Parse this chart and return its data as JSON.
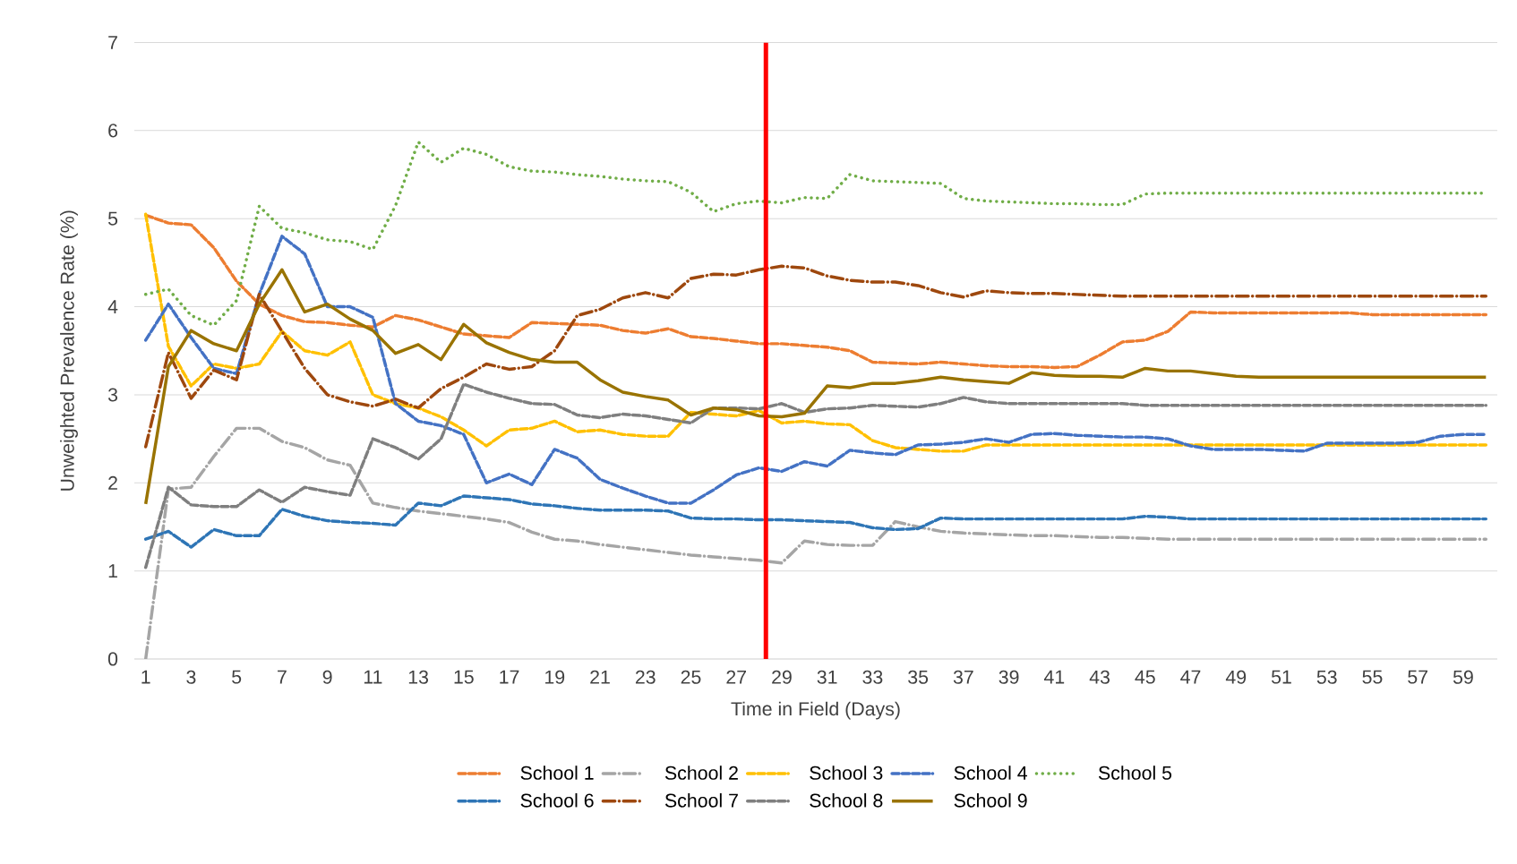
{
  "chart_data": {
    "type": "line",
    "xlabel": "Time in Field (Days)",
    "ylabel": "Unweighted Prevalence Rate (%)",
    "x": [
      1,
      2,
      3,
      4,
      5,
      6,
      7,
      8,
      9,
      10,
      11,
      12,
      13,
      14,
      15,
      16,
      17,
      18,
      19,
      20,
      21,
      22,
      23,
      24,
      25,
      26,
      27,
      28,
      29,
      30,
      31,
      32,
      33,
      34,
      35,
      36,
      37,
      38,
      39,
      40,
      41,
      42,
      43,
      44,
      45,
      46,
      47,
      48,
      49,
      50,
      51,
      52,
      53,
      54,
      55,
      56,
      57,
      58,
      59,
      60
    ],
    "xlim": [
      0.5,
      60.5
    ],
    "xticks": [
      1,
      3,
      5,
      7,
      9,
      11,
      13,
      15,
      17,
      19,
      21,
      23,
      25,
      27,
      29,
      31,
      33,
      35,
      37,
      39,
      41,
      43,
      45,
      47,
      49,
      51,
      53,
      55,
      57,
      59
    ],
    "ylim": [
      0,
      7
    ],
    "yticks": [
      0,
      1,
      2,
      3,
      4,
      5,
      6,
      7
    ],
    "grid": "y",
    "legend": "bottom",
    "marker": "none",
    "ref_lines": [
      {
        "axis": "x",
        "value": 28.3,
        "color": "#ff0000",
        "line_style": "solid"
      }
    ],
    "series": [
      {
        "name": "School 1",
        "color": "#ed7d31",
        "line_style": "dashed",
        "values": [
          5.04,
          4.95,
          4.93,
          4.67,
          4.29,
          4.03,
          3.9,
          3.83,
          3.82,
          3.79,
          3.77,
          3.9,
          3.85,
          3.77,
          3.69,
          3.67,
          3.65,
          3.82,
          3.81,
          3.8,
          3.79,
          3.73,
          3.7,
          3.75,
          3.66,
          3.64,
          3.61,
          3.58,
          3.58,
          3.56,
          3.54,
          3.5,
          3.37,
          3.36,
          3.35,
          3.37,
          3.35,
          3.33,
          3.32,
          3.32,
          3.31,
          3.32,
          3.45,
          3.6,
          3.62,
          3.72,
          3.94,
          3.93,
          3.93,
          3.93,
          3.93,
          3.93,
          3.93,
          3.93,
          3.91,
          3.91,
          3.91,
          3.91,
          3.91,
          3.91
        ]
      },
      {
        "name": "School 2",
        "color": "#a5a5a5",
        "line_style": "dashdot",
        "values": [
          0,
          1.93,
          1.95,
          2.3,
          2.62,
          2.62,
          2.47,
          2.4,
          2.26,
          2.2,
          1.77,
          1.72,
          1.68,
          1.65,
          1.62,
          1.59,
          1.55,
          1.44,
          1.36,
          1.34,
          1.3,
          1.27,
          1.24,
          1.21,
          1.18,
          1.16,
          1.14,
          1.12,
          1.09,
          1.34,
          1.3,
          1.29,
          1.29,
          1.56,
          1.5,
          1.45,
          1.43,
          1.42,
          1.41,
          1.4,
          1.4,
          1.39,
          1.38,
          1.38,
          1.37,
          1.36,
          1.36,
          1.36,
          1.36,
          1.36,
          1.36,
          1.36,
          1.36,
          1.36,
          1.36,
          1.36,
          1.36,
          1.36,
          1.36,
          1.36
        ]
      },
      {
        "name": "School 3",
        "color": "#ffc000",
        "line_style": "dashed",
        "values": [
          5.05,
          3.55,
          3.1,
          3.35,
          3.3,
          3.35,
          3.72,
          3.5,
          3.45,
          3.6,
          3.0,
          2.9,
          2.85,
          2.75,
          2.6,
          2.42,
          2.6,
          2.62,
          2.7,
          2.58,
          2.6,
          2.55,
          2.53,
          2.53,
          2.8,
          2.78,
          2.76,
          2.82,
          2.68,
          2.7,
          2.67,
          2.66,
          2.48,
          2.4,
          2.38,
          2.36,
          2.36,
          2.43,
          2.43,
          2.43,
          2.43,
          2.43,
          2.43,
          2.43,
          2.43,
          2.43,
          2.43,
          2.43,
          2.43,
          2.43,
          2.43,
          2.43,
          2.43,
          2.43,
          2.43,
          2.43,
          2.43,
          2.43,
          2.43,
          2.43
        ]
      },
      {
        "name": "School 4",
        "color": "#4472c4",
        "line_style": "dashed",
        "values": [
          3.62,
          4.03,
          3.65,
          3.3,
          3.24,
          4.14,
          4.8,
          4.6,
          4.0,
          4.0,
          3.88,
          2.9,
          2.7,
          2.65,
          2.55,
          2.0,
          2.1,
          1.98,
          2.38,
          2.28,
          2.04,
          1.94,
          1.85,
          1.77,
          1.77,
          1.92,
          2.09,
          2.17,
          2.13,
          2.24,
          2.19,
          2.37,
          2.34,
          2.32,
          2.43,
          2.44,
          2.46,
          2.5,
          2.46,
          2.55,
          2.56,
          2.54,
          2.53,
          2.52,
          2.52,
          2.5,
          2.42,
          2.38,
          2.38,
          2.38,
          2.37,
          2.36,
          2.45,
          2.45,
          2.45,
          2.45,
          2.46,
          2.53,
          2.55,
          2.55
        ]
      },
      {
        "name": "School 5",
        "color": "#70ad47",
        "line_style": "dotted",
        "values": [
          4.14,
          4.2,
          3.9,
          3.79,
          4.07,
          5.14,
          4.89,
          4.84,
          4.76,
          4.74,
          4.65,
          5.15,
          5.87,
          5.64,
          5.8,
          5.73,
          5.59,
          5.54,
          5.53,
          5.5,
          5.48,
          5.45,
          5.43,
          5.42,
          5.3,
          5.08,
          5.17,
          5.2,
          5.18,
          5.24,
          5.23,
          5.5,
          5.43,
          5.42,
          5.41,
          5.4,
          5.23,
          5.2,
          5.19,
          5.18,
          5.17,
          5.17,
          5.16,
          5.16,
          5.28,
          5.29,
          5.29,
          5.29,
          5.29,
          5.29,
          5.29,
          5.29,
          5.29,
          5.29,
          5.29,
          5.29,
          5.29,
          5.29,
          5.29,
          5.29
        ]
      },
      {
        "name": "School 6",
        "color": "#2e75b6",
        "line_style": "dashed",
        "values": [
          1.36,
          1.45,
          1.27,
          1.47,
          1.4,
          1.4,
          1.7,
          1.62,
          1.57,
          1.55,
          1.54,
          1.52,
          1.77,
          1.74,
          1.85,
          1.83,
          1.81,
          1.76,
          1.74,
          1.71,
          1.69,
          1.69,
          1.69,
          1.68,
          1.6,
          1.59,
          1.59,
          1.58,
          1.58,
          1.57,
          1.56,
          1.55,
          1.49,
          1.47,
          1.48,
          1.6,
          1.59,
          1.59,
          1.59,
          1.59,
          1.59,
          1.59,
          1.59,
          1.59,
          1.62,
          1.61,
          1.59,
          1.59,
          1.59,
          1.59,
          1.59,
          1.59,
          1.59,
          1.59,
          1.59,
          1.59,
          1.59,
          1.59,
          1.59,
          1.59
        ]
      },
      {
        "name": "School 7",
        "color": "#9e480e",
        "line_style": "dashdot",
        "values": [
          2.41,
          3.48,
          2.96,
          3.28,
          3.17,
          4.14,
          3.72,
          3.3,
          3.0,
          2.92,
          2.87,
          2.95,
          2.85,
          3.07,
          3.2,
          3.35,
          3.29,
          3.32,
          3.5,
          3.9,
          3.97,
          4.1,
          4.16,
          4.1,
          4.32,
          4.37,
          4.36,
          4.42,
          4.46,
          4.44,
          4.35,
          4.3,
          4.28,
          4.28,
          4.24,
          4.16,
          4.11,
          4.18,
          4.16,
          4.15,
          4.15,
          4.14,
          4.13,
          4.12,
          4.12,
          4.12,
          4.12,
          4.12,
          4.12,
          4.12,
          4.12,
          4.12,
          4.12,
          4.12,
          4.12,
          4.12,
          4.12,
          4.12,
          4.12,
          4.12
        ]
      },
      {
        "name": "School 8",
        "color": "#7f7f7f",
        "line_style": "dashed",
        "values": [
          1.04,
          1.95,
          1.75,
          1.73,
          1.73,
          1.92,
          1.78,
          1.95,
          1.9,
          1.86,
          2.5,
          2.4,
          2.27,
          2.5,
          3.12,
          3.03,
          2.96,
          2.9,
          2.89,
          2.77,
          2.74,
          2.78,
          2.76,
          2.72,
          2.68,
          2.85,
          2.85,
          2.84,
          2.9,
          2.8,
          2.84,
          2.85,
          2.88,
          2.87,
          2.86,
          2.9,
          2.97,
          2.92,
          2.9,
          2.9,
          2.9,
          2.9,
          2.9,
          2.9,
          2.88,
          2.88,
          2.88,
          2.88,
          2.88,
          2.88,
          2.88,
          2.88,
          2.88,
          2.88,
          2.88,
          2.88,
          2.88,
          2.88,
          2.88,
          2.88
        ]
      },
      {
        "name": "School 9",
        "color": "#997300",
        "line_style": "solid",
        "values": [
          1.76,
          3.32,
          3.73,
          3.58,
          3.5,
          4.03,
          4.42,
          3.94,
          4.03,
          3.86,
          3.73,
          3.47,
          3.57,
          3.4,
          3.8,
          3.59,
          3.48,
          3.4,
          3.37,
          3.37,
          3.17,
          3.03,
          2.98,
          2.94,
          2.77,
          2.85,
          2.83,
          2.76,
          2.75,
          2.79,
          3.1,
          3.08,
          3.13,
          3.13,
          3.16,
          3.2,
          3.17,
          3.15,
          3.13,
          3.25,
          3.22,
          3.21,
          3.21,
          3.2,
          3.3,
          3.27,
          3.27,
          3.24,
          3.21,
          3.2,
          3.2,
          3.2,
          3.2,
          3.2,
          3.2,
          3.2,
          3.2,
          3.2,
          3.2,
          3.2
        ]
      }
    ]
  }
}
